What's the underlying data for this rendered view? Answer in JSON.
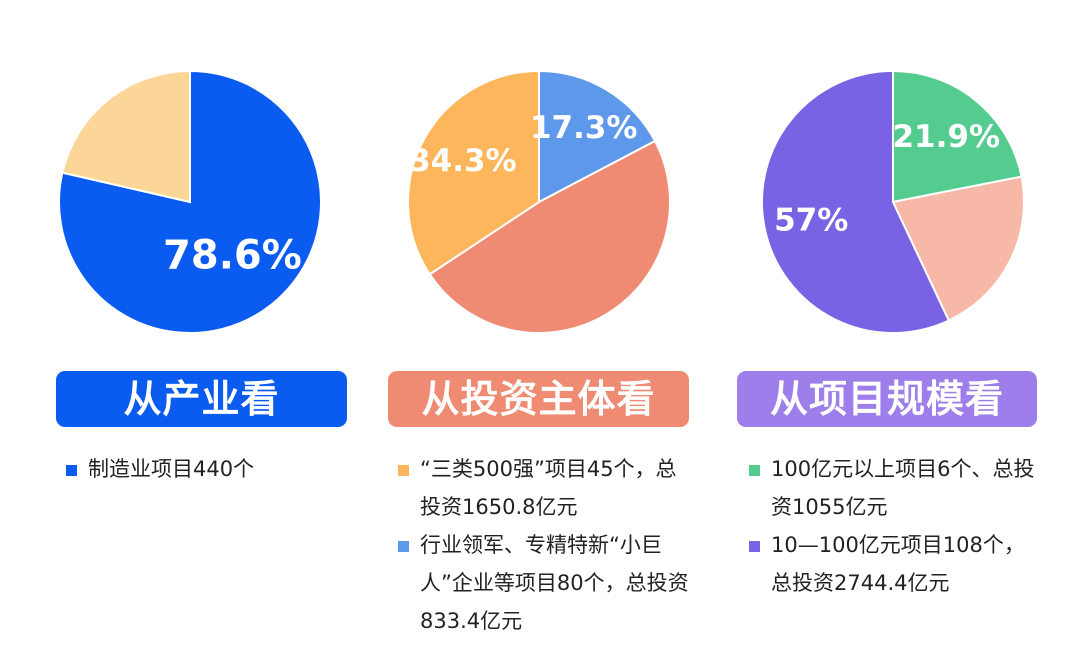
{
  "chart_data": [
    {
      "type": "pie",
      "title": "从产业看",
      "slices": [
        {
          "value": 78.6,
          "label": "78.6%",
          "color": "#0A5BF0"
        },
        {
          "value": 21.4,
          "label": "",
          "color": "#FCD699"
        }
      ],
      "notes": [
        {
          "text": "制造业项目440个",
          "color": "#0A5BF0"
        }
      ],
      "banner_color": "#0A5BF0"
    },
    {
      "type": "pie",
      "title": "从投资主体看",
      "slices": [
        {
          "value": 17.3,
          "label": "17.3%",
          "color": "#5E98EB"
        },
        {
          "value": 48.4,
          "label": "",
          "color": "#EF8B72"
        },
        {
          "value": 34.3,
          "label": "34.3%",
          "color": "#FDB65B"
        }
      ],
      "notes": [
        {
          "text": "“三类500强”项目45个，总投资1650.8亿元",
          "color": "#FDB65B"
        },
        {
          "text": "行业领军、专精特新“小巨人”企业等项目80个，总投资833.4亿元",
          "color": "#5E98EB"
        }
      ],
      "banner_color": "#EF8B72"
    },
    {
      "type": "pie",
      "title": "从项目规模看",
      "slices": [
        {
          "value": 21.9,
          "label": "21.9%",
          "color": "#55CC8F"
        },
        {
          "value": 21.1,
          "label": "",
          "color": "#F7B8A8"
        },
        {
          "value": 57,
          "label": "57%",
          "color": "#7A62E4"
        }
      ],
      "notes": [
        {
          "text": "100亿元以上项目6个、总投资1055亿元",
          "color": "#55CC8F"
        },
        {
          "text": "10—100亿元项目108个，总投资2744.4亿元",
          "color": "#7A62E4"
        }
      ],
      "banner_color": "#9D7EEB"
    }
  ]
}
